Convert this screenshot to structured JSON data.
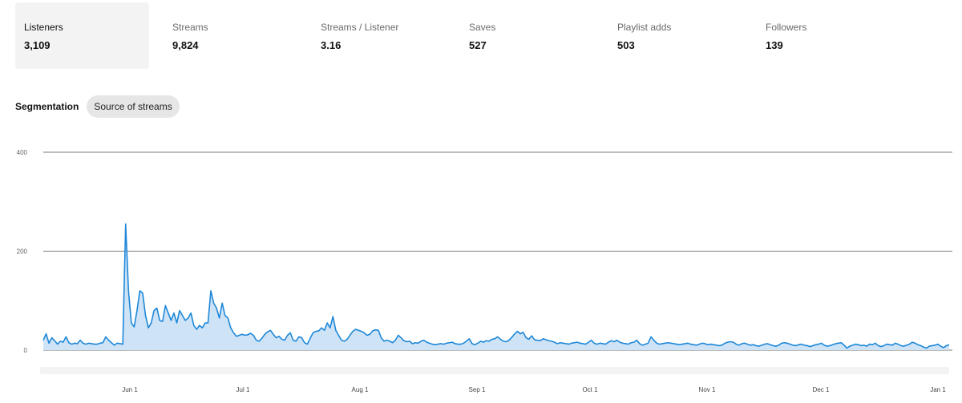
{
  "stats": [
    {
      "label": "Listeners",
      "value": "3,109"
    },
    {
      "label": "Streams",
      "value": "9,824"
    },
    {
      "label": "Streams / Listener",
      "value": "3.16"
    },
    {
      "label": "Saves",
      "value": "527"
    },
    {
      "label": "Playlist adds",
      "value": "503"
    },
    {
      "label": "Followers",
      "value": "139"
    }
  ],
  "segmentation": {
    "label": "Segmentation",
    "chip": "Source of streams"
  },
  "colors": {
    "line": "#1e88d8",
    "fill": "#cfe3f7",
    "grid": "#7a7a7a",
    "panel": "#f3f3f3"
  },
  "chart_data": {
    "type": "area",
    "x_start": "May 9",
    "x_end": "Jan 2",
    "ylim": [
      0,
      400
    ],
    "yticks": [
      0,
      200,
      400
    ],
    "xticks": [
      "Jun 1",
      "Jul 1",
      "Aug 1",
      "Sep 1",
      "Oct 1",
      "Nov 1",
      "Dec 1",
      "Jan 1"
    ],
    "grid": true,
    "series": [
      {
        "values": [
          20,
          33,
          14,
          25,
          19,
          12,
          18,
          16,
          27,
          15,
          12,
          14,
          13,
          20,
          14,
          12,
          14,
          13,
          12,
          12,
          14,
          15,
          27,
          20,
          15,
          10,
          14,
          13,
          12,
          255,
          120,
          55,
          47,
          80,
          120,
          115,
          70,
          45,
          55,
          80,
          85,
          60,
          58,
          90,
          75,
          60,
          75,
          55,
          80,
          70,
          60,
          65,
          75,
          50,
          42,
          50,
          45,
          55,
          55,
          120,
          95,
          85,
          65,
          95,
          70,
          65,
          45,
          35,
          28,
          30,
          32,
          30,
          31,
          34,
          30,
          20,
          18,
          24,
          32,
          37,
          40,
          32,
          25,
          28,
          22,
          20,
          30,
          35,
          20,
          18,
          27,
          25,
          15,
          12,
          24,
          35,
          38,
          39,
          45,
          40,
          55,
          45,
          68,
          40,
          30,
          20,
          18,
          22,
          30,
          38,
          42,
          40,
          38,
          35,
          30,
          32,
          39,
          41,
          40,
          25,
          18,
          20,
          18,
          15,
          20,
          30,
          25,
          19,
          17,
          18,
          13,
          15,
          14,
          18,
          20,
          16,
          14,
          12,
          11,
          12,
          13,
          12,
          14,
          15,
          16,
          13,
          12,
          12,
          14,
          18,
          23,
          13,
          11,
          14,
          18,
          16,
          19,
          18,
          22,
          23,
          27,
          22,
          18,
          17,
          20,
          26,
          33,
          38,
          33,
          36,
          25,
          22,
          29,
          21,
          20,
          19,
          23,
          21,
          19,
          18,
          16,
          13,
          15,
          14,
          13,
          12,
          14,
          15,
          16,
          14,
          13,
          12,
          16,
          20,
          14,
          12,
          14,
          13,
          12,
          16,
          19,
          17,
          20,
          16,
          14,
          13,
          12,
          15,
          16,
          20,
          13,
          10,
          12,
          14,
          27,
          20,
          14,
          12,
          13,
          14,
          15,
          14,
          13,
          12,
          11,
          12,
          13,
          14,
          12,
          11,
          10,
          12,
          14,
          13,
          11,
          12,
          11,
          10,
          9,
          10,
          14,
          16,
          17,
          16,
          12,
          10,
          13,
          14,
          12,
          10,
          11,
          9,
          8,
          10,
          12,
          13,
          11,
          9,
          8,
          10,
          14,
          15,
          14,
          12,
          10,
          9,
          11,
          12,
          10,
          9,
          7,
          9,
          11,
          12,
          14,
          10,
          8,
          9,
          11,
          13,
          14,
          15,
          10,
          4,
          8,
          10,
          12,
          11,
          9,
          10,
          8,
          12,
          11,
          14,
          9,
          7,
          9,
          12,
          11,
          10,
          14,
          12,
          9,
          8,
          10,
          12,
          16,
          14,
          11,
          9,
          6,
          4,
          8,
          9,
          10,
          12,
          8,
          5,
          9,
          11
        ]
      }
    ]
  }
}
